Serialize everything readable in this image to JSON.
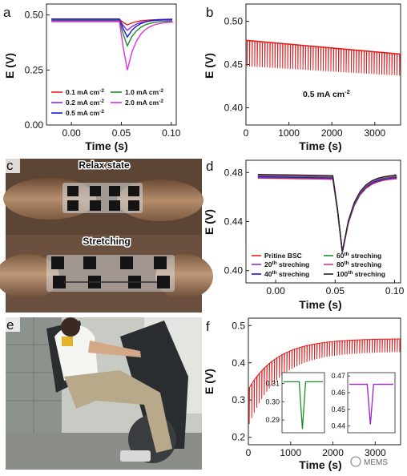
{
  "panels": {
    "a": "a",
    "b": "b",
    "c": "c",
    "d": "d",
    "e": "e",
    "f": "f"
  },
  "photo_c": {
    "top_caption": "Relax state",
    "bottom_caption": "Stretching"
  },
  "watermark": "MEMS",
  "chart_data": [
    {
      "id": "a",
      "type": "line",
      "xlabel": "Time (s)",
      "ylabel": "E (V)",
      "xlim": [
        -0.025,
        0.105
      ],
      "ylim": [
        0,
        0.55
      ],
      "xticks": [
        "0.00",
        "0.05",
        "0.10"
      ],
      "yticks": [
        "0.00",
        "0.25",
        "0.50"
      ],
      "legend_position": "bottom",
      "series": [
        {
          "name": "0.1 mA cm",
          "sup": "-2",
          "color": "#e02020",
          "min": 0.455
        },
        {
          "name": "0.2 mA cm",
          "sup": "-2",
          "color": "#8a2be2",
          "min": 0.43
        },
        {
          "name": "0.5 mA cm",
          "sup": "-2",
          "color": "#1a1ad8",
          "min": 0.4
        },
        {
          "name": "1.0 mA cm",
          "sup": "-2",
          "color": "#1f8a2a",
          "min": 0.36
        },
        {
          "name": "2.0 mA cm",
          "sup": "-2",
          "color": "#e030e0",
          "min": 0.25
        }
      ]
    },
    {
      "id": "b",
      "type": "line",
      "xlabel": "Time (s)",
      "ylabel": "E (V)",
      "xlim": [
        0,
        3600
      ],
      "ylim": [
        0.38,
        0.52
      ],
      "xticks": [
        "0",
        "1000",
        "2000",
        "3000"
      ],
      "yticks": [
        "0.40",
        "0.45",
        "0.50"
      ],
      "annotation": {
        "text": "0.5 mA cm",
        "sup": "-2"
      },
      "series": [
        {
          "color": "#e02020",
          "start_top": 0.478,
          "end_top": 0.462,
          "start_bottom": 0.448,
          "end_bottom": 0.437
        }
      ]
    },
    {
      "id": "d",
      "type": "line",
      "xlabel": "Time (s)",
      "ylabel": "E (V)",
      "xlim": [
        -0.025,
        0.105
      ],
      "ylim": [
        0.39,
        0.49
      ],
      "xticks": [
        "0.00",
        "0.05",
        "0.10"
      ],
      "yticks": [
        "0.40",
        "0.44",
        "0.48"
      ],
      "legend_position": "bottom",
      "series": [
        {
          "name": "Pritine BSC",
          "color": "#e02020"
        },
        {
          "name": "20",
          "sup": "th",
          "suffix": " streching",
          "color": "#8a2be2"
        },
        {
          "name": "40",
          "sup": "th",
          "suffix": " streching",
          "color": "#1a1ad8"
        },
        {
          "name": "60",
          "sup": "th",
          "suffix": " streching",
          "color": "#1f8a2a"
        },
        {
          "name": "80",
          "sup": "th",
          "suffix": " streching",
          "color": "#e030a0"
        },
        {
          "name": "100",
          "sup": "th",
          "suffix": " streching",
          "color": "#222222"
        }
      ],
      "baseline": 0.477,
      "minimum": 0.415
    },
    {
      "id": "f",
      "type": "line",
      "xlabel": "Time (s)",
      "ylabel": "E (V)",
      "xlim": [
        0,
        3600
      ],
      "ylim": [
        0.18,
        0.52
      ],
      "xticks": [
        "0",
        "1000",
        "2000",
        "3000"
      ],
      "yticks": [
        "0.2",
        "0.3",
        "0.4",
        "0.5"
      ],
      "series": [
        {
          "color": "#e02020",
          "start_top": 0.33,
          "end_top": 0.465,
          "start_bottom": 0.23,
          "end_bottom": 0.43
        }
      ],
      "insets": [
        {
          "color": "#1f8a2a",
          "yticks": [
            "0.29",
            "0.30",
            "0.31"
          ],
          "ylim": [
            0.283,
            0.316
          ],
          "baseline": 0.311,
          "minimum": 0.285
        },
        {
          "color": "#9a20d0",
          "yticks": [
            "0.44",
            "0.45",
            "0.46",
            "0.47"
          ],
          "ylim": [
            0.436,
            0.472
          ],
          "baseline": 0.465,
          "minimum": 0.441
        }
      ]
    }
  ]
}
